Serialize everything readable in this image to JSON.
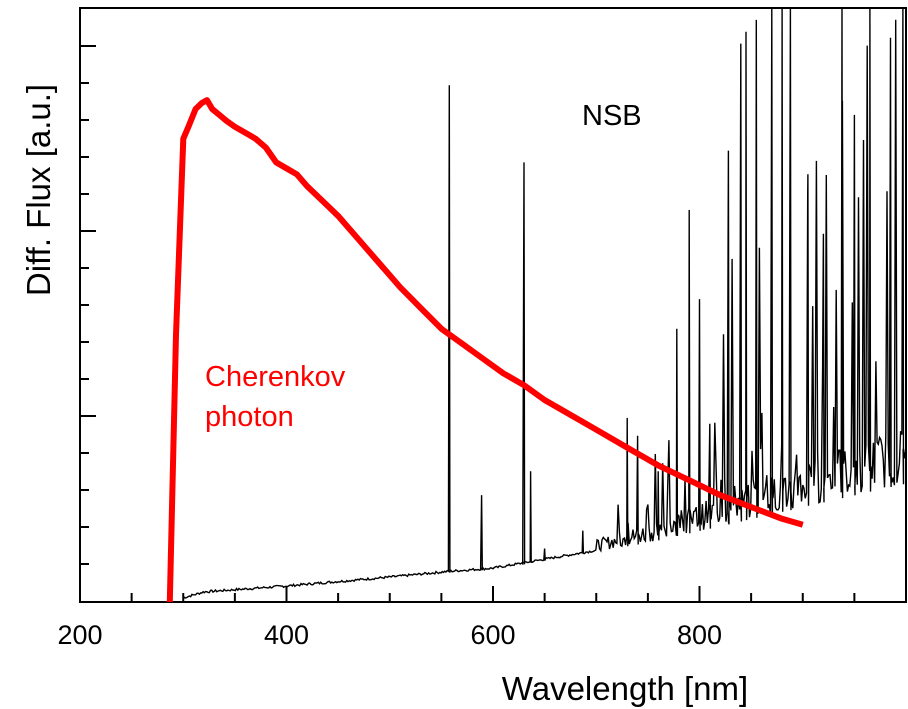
{
  "chart_data": {
    "type": "line",
    "title": "",
    "xlabel": "Wavelength [nm]",
    "ylabel": "Diff. Flux [a.u.]",
    "xlim": [
      200,
      1000
    ],
    "ylim": [
      0,
      1
    ],
    "x_ticks": [
      200,
      400,
      600,
      800
    ],
    "x_ticks_minor": [
      250,
      300,
      350,
      450,
      500,
      550,
      650,
      700,
      750,
      850,
      900,
      950
    ],
    "grid": false,
    "legend": "none",
    "annotations": [
      {
        "text": "NSB",
        "x": 650,
        "y": 0.82,
        "color": "#000000"
      },
      {
        "text": "Cherenkov",
        "x": 305,
        "y": 0.37,
        "color": "#ff0000"
      },
      {
        "text": "photon",
        "x": 305,
        "y": 0.31,
        "color": "#ff0000"
      }
    ],
    "series": [
      {
        "color": "#ff0000",
        "x": [
          287,
          293,
          300,
          305,
          312,
          318,
          323,
          328,
          335,
          342,
          350,
          360,
          370,
          380,
          390,
          400,
          410,
          420,
          435,
          450,
          470,
          490,
          510,
          530,
          550,
          570,
          590,
          610,
          630,
          650,
          670,
          700,
          730,
          760,
          790,
          820,
          850,
          880,
          900
        ],
        "y": [
          0.0,
          0.45,
          0.78,
          0.8,
          0.83,
          0.84,
          0.845,
          0.83,
          0.82,
          0.81,
          0.8,
          0.79,
          0.78,
          0.765,
          0.74,
          0.73,
          0.72,
          0.7,
          0.675,
          0.65,
          0.61,
          0.57,
          0.53,
          0.495,
          0.46,
          0.435,
          0.41,
          0.385,
          0.365,
          0.34,
          0.32,
          0.29,
          0.26,
          0.23,
          0.205,
          0.18,
          0.16,
          0.14,
          0.13
        ]
      },
      {
        "color": "#000000",
        "baseline": [
          [
            300,
            0.005
          ],
          [
            320,
            0.015
          ],
          [
            400,
            0.025
          ],
          [
            500,
            0.04
          ],
          [
            560,
            0.05
          ],
          [
            600,
            0.055
          ],
          [
            650,
            0.07
          ],
          [
            700,
            0.085
          ],
          [
            750,
            0.1
          ],
          [
            800,
            0.12
          ],
          [
            850,
            0.14
          ],
          [
            900,
            0.16
          ],
          [
            950,
            0.18
          ],
          [
            1000,
            0.2
          ]
        ],
        "lines": [
          {
            "x": 557.7,
            "y": 0.87
          },
          {
            "x": 589.0,
            "y": 0.18
          },
          {
            "x": 630.0,
            "y": 0.74
          },
          {
            "x": 636.4,
            "y": 0.22
          },
          {
            "x": 650.0,
            "y": 0.09
          },
          {
            "x": 687.0,
            "y": 0.12
          },
          {
            "x": 730.0,
            "y": 0.31
          },
          {
            "x": 740.0,
            "y": 0.28
          },
          {
            "x": 760.0,
            "y": 0.22
          },
          {
            "x": 778.0,
            "y": 0.46
          },
          {
            "x": 790.0,
            "y": 0.66
          },
          {
            "x": 800.0,
            "y": 0.51
          },
          {
            "x": 810.0,
            "y": 0.3
          },
          {
            "x": 828.0,
            "y": 0.76
          },
          {
            "x": 840.0,
            "y": 0.94
          },
          {
            "x": 845.0,
            "y": 0.96
          },
          {
            "x": 855.0,
            "y": 0.98
          },
          {
            "x": 870.0,
            "y": 1.0
          },
          {
            "x": 880.0,
            "y": 1.0
          },
          {
            "x": 888.0,
            "y": 1.0
          },
          {
            "x": 905.0,
            "y": 0.72
          },
          {
            "x": 920.0,
            "y": 0.62
          },
          {
            "x": 938.0,
            "y": 1.0
          },
          {
            "x": 950.0,
            "y": 0.82
          },
          {
            "x": 965.0,
            "y": 1.0
          },
          {
            "x": 985.0,
            "y": 0.95
          },
          {
            "x": 997.0,
            "y": 1.0
          }
        ]
      }
    ]
  }
}
